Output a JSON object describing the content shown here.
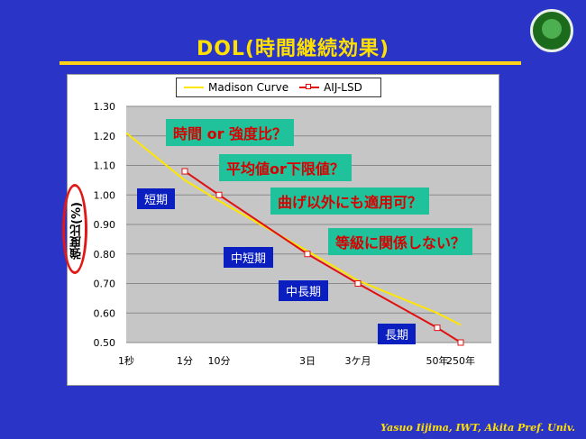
{
  "title": "DOL(時間継続効果)",
  "footer": "Yasuo Iijima, IWT, Akita Pref. Univ.",
  "y_axis_label": "強度比(%)",
  "annotations": [
    "時間 or 強度比？",
    "平均値or下限値？",
    "曲げ以外にも適用可？",
    "等級に関係しない？"
  ],
  "period_labels": [
    "短期",
    "中短期",
    "中長期",
    "長期"
  ],
  "colors": {
    "madison": "#ffe600",
    "aij": "#e01010",
    "annotation_bg": "#1fc29a",
    "badge_bg": "#0b1fc0"
  },
  "chart_data": {
    "type": "line",
    "legend_position": "top-center",
    "grid": "horizontal",
    "ylim": [
      0.5,
      1.3
    ],
    "yticks": [
      "0.50",
      "0.60",
      "0.70",
      "0.80",
      "0.90",
      "1.00",
      "1.10",
      "1.20",
      "1.30"
    ],
    "xticks": [
      "1秒",
      "1分",
      "10分",
      "3日",
      "3ケ月",
      "50年",
      "250年"
    ],
    "series": [
      {
        "name": "Madison Curve",
        "points": [
          [
            "1秒",
            1.21
          ],
          [
            "1分",
            1.05
          ],
          [
            "10分",
            0.98
          ],
          [
            "3日",
            0.81
          ],
          [
            "3ケ月",
            0.71
          ],
          [
            "50年",
            0.6
          ],
          [
            "250年",
            0.56
          ]
        ]
      },
      {
        "name": "AIJ-LSD",
        "points": [
          [
            "1分",
            1.08
          ],
          [
            "10分",
            1.0
          ],
          [
            "3日",
            0.8
          ],
          [
            "3ケ月",
            0.7
          ],
          [
            "50年",
            0.55
          ],
          [
            "250年",
            0.5
          ]
        ]
      }
    ]
  }
}
